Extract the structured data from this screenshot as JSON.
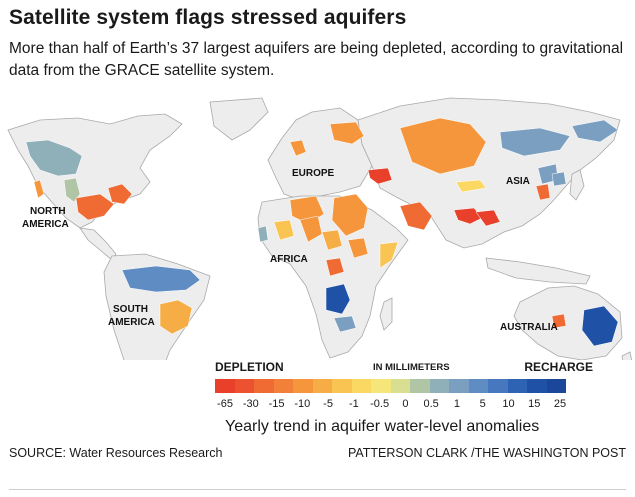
{
  "header": {
    "title": "Satellite system flags stressed aquifers",
    "subtitle": "More than half of Earth’s 37 largest aquifers are being depleted, according to gravitational data from the GRACE satellite system."
  },
  "map": {
    "land_color": "#ededed",
    "coast_color": "#a9a9a9",
    "regions": {
      "north_america": "NORTH\nAMERICA",
      "south_america": "SOUTH\nAMERICA",
      "europe": "EUROPE",
      "africa": "AFRICA",
      "asia": "ASIA",
      "australia": "AUSTRALIA"
    }
  },
  "legend": {
    "depletion_label": "DEPLETION",
    "units_label": "IN MILLIMETERS",
    "recharge_label": "RECHARGE",
    "colors": [
      "#e8402a",
      "#ed5230",
      "#f06a34",
      "#f38038",
      "#f5963c",
      "#f7ad46",
      "#f9c452",
      "#fad861",
      "#f6e579",
      "#d8df92",
      "#b0c5a6",
      "#8fb0b8",
      "#7a9fc0",
      "#5f8cc2",
      "#4677bf",
      "#2e62b3",
      "#1f52a6",
      "#1a479a"
    ],
    "ticks": [
      "-65",
      "-30",
      "-15",
      "-10",
      "-5",
      "-1",
      "-0.5",
      "0",
      "0.5",
      "1",
      "5",
      "10",
      "15",
      "25"
    ],
    "caption": "Yearly trend in aquifer water-level anomalies"
  },
  "footer": {
    "source": "SOURCE: Water Resources Research",
    "credit": "PATTERSON CLARK /THE WASHINGTON POST"
  }
}
